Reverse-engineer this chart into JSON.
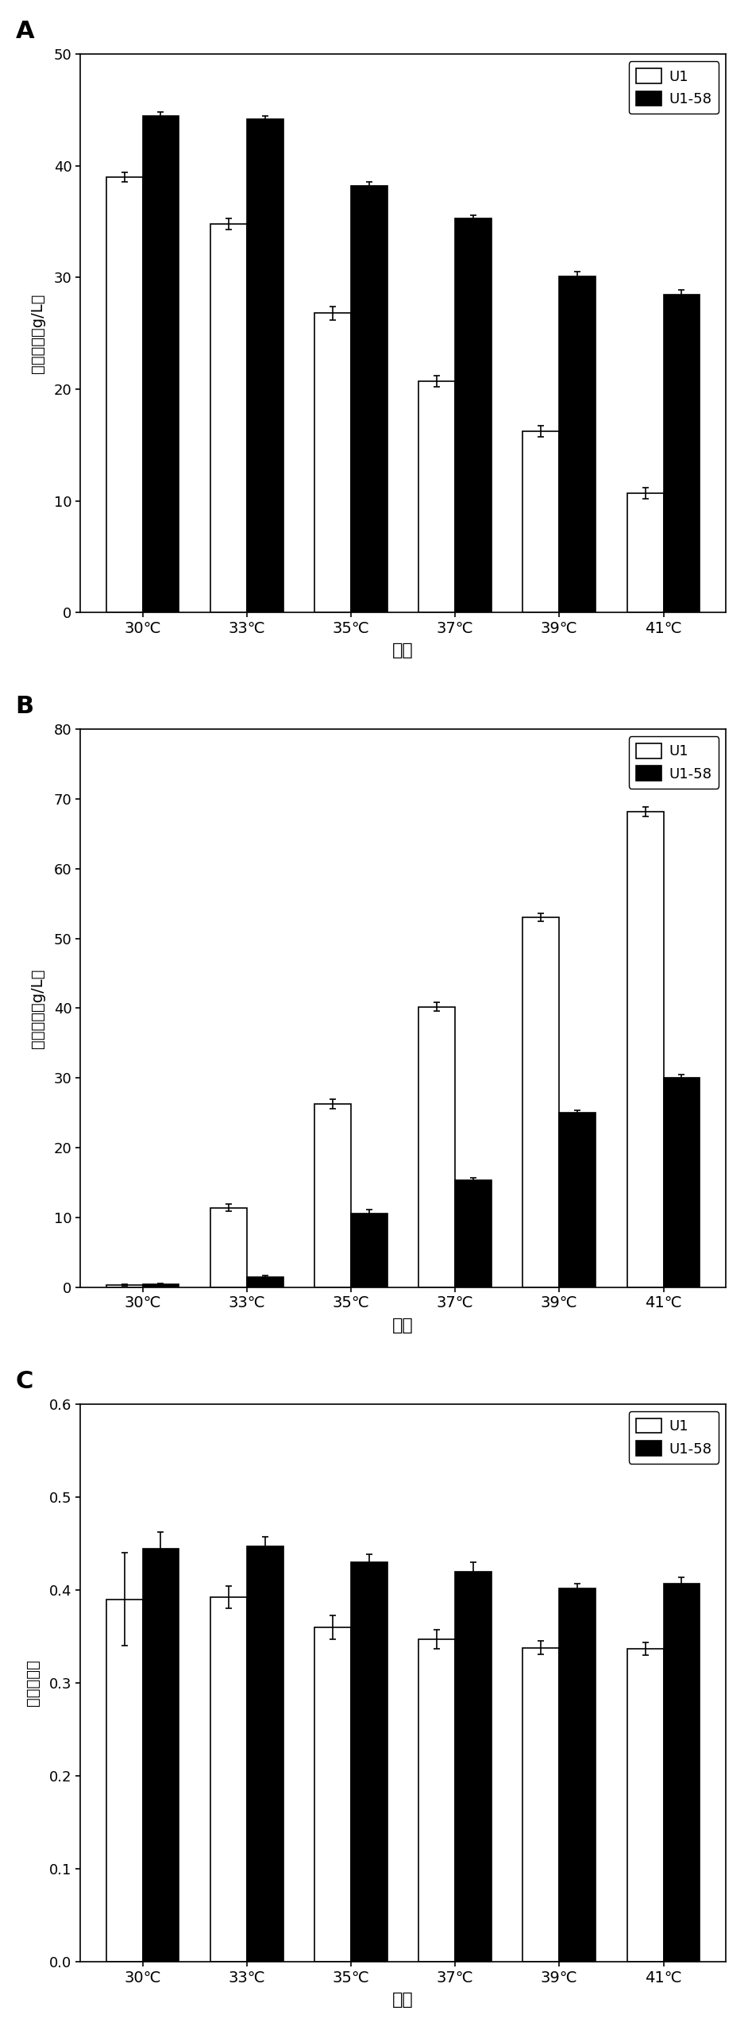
{
  "categories": [
    "30℃",
    "33℃",
    "35℃",
    "37℃",
    "39℃",
    "41℃"
  ],
  "xlabel": "温度",
  "panelA": {
    "label": "A",
    "ylabel": "乙醇浓度（g/L）",
    "ylim": [
      0,
      50
    ],
    "yticks": [
      0,
      10,
      20,
      30,
      40,
      50
    ],
    "U1_values": [
      39.0,
      34.8,
      26.8,
      20.7,
      16.2,
      10.7
    ],
    "U158_values": [
      44.5,
      44.2,
      38.2,
      35.3,
      30.1,
      28.5
    ],
    "U1_errors": [
      0.4,
      0.5,
      0.6,
      0.5,
      0.5,
      0.5
    ],
    "U158_errors": [
      0.3,
      0.3,
      0.4,
      0.3,
      0.4,
      0.4
    ]
  },
  "panelB": {
    "label": "B",
    "ylabel": "木糖浓度（g/L）",
    "ylim": [
      0,
      80
    ],
    "yticks": [
      0,
      10,
      20,
      30,
      40,
      50,
      60,
      70,
      80
    ],
    "U1_values": [
      0.3,
      11.4,
      26.3,
      40.2,
      53.0,
      68.2
    ],
    "U158_values": [
      0.4,
      1.5,
      10.6,
      15.3,
      25.0,
      30.0
    ],
    "U1_errors": [
      0.1,
      0.5,
      0.7,
      0.6,
      0.6,
      0.7
    ],
    "U158_errors": [
      0.1,
      0.2,
      0.5,
      0.4,
      0.4,
      0.5
    ]
  },
  "panelC": {
    "label": "C",
    "ylabel": "糖醇转化率",
    "ylim": [
      0.0,
      0.6
    ],
    "yticks": [
      0.0,
      0.1,
      0.2,
      0.3,
      0.4,
      0.5,
      0.6
    ],
    "U1_values": [
      0.39,
      0.392,
      0.36,
      0.347,
      0.338,
      0.337
    ],
    "U158_values": [
      0.444,
      0.447,
      0.43,
      0.42,
      0.402,
      0.407
    ],
    "U1_errors": [
      0.05,
      0.012,
      0.013,
      0.01,
      0.007,
      0.007
    ],
    "U158_errors": [
      0.018,
      0.01,
      0.008,
      0.01,
      0.005,
      0.007
    ]
  },
  "U1_color": "white",
  "U158_color": "black",
  "bar_edge_color": "black",
  "bar_width": 0.35,
  "legend_U1": "U1",
  "legend_U158": "U1-58",
  "figure_bg": "white"
}
